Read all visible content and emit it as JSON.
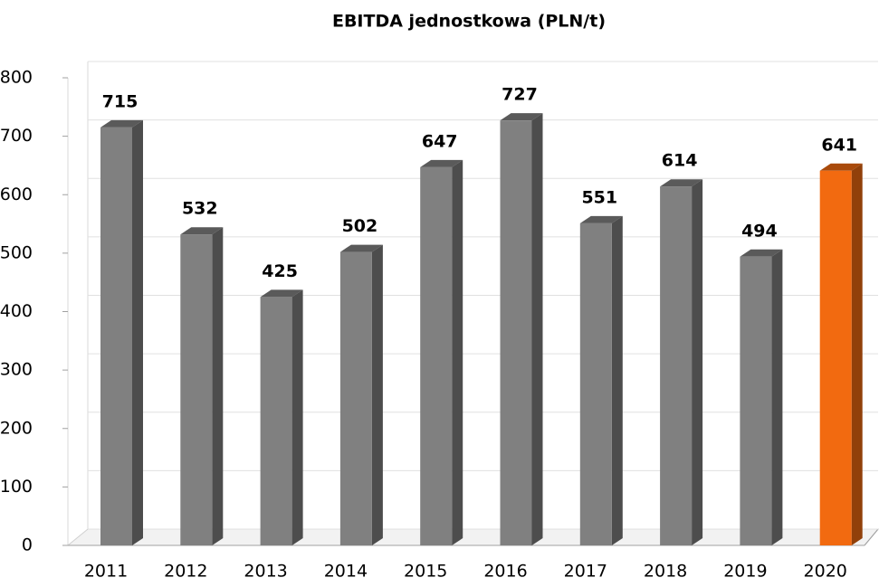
{
  "chart_data": {
    "type": "bar3d",
    "title": "EBITDA jednostkowa (PLN/t)",
    "categories": [
      "2011",
      "2012",
      "2013",
      "2014",
      "2015",
      "2016",
      "2017",
      "2018",
      "2019",
      "2020"
    ],
    "values": [
      715,
      532,
      425,
      502,
      647,
      727,
      551,
      614,
      494,
      641
    ],
    "colors": [
      "#808080",
      "#808080",
      "#808080",
      "#808080",
      "#808080",
      "#808080",
      "#808080",
      "#808080",
      "#808080",
      "#f26a10"
    ],
    "ylim": [
      0,
      800
    ],
    "yticks": [
      0,
      100,
      200,
      300,
      400,
      500,
      600,
      700,
      800
    ],
    "grid": true
  }
}
